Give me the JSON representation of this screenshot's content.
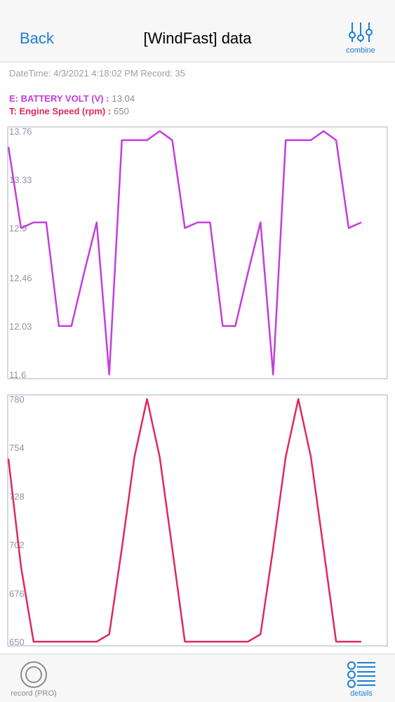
{
  "navbar": {
    "back_label": "Back",
    "title": "[WindFast] data",
    "combine_label": "combine",
    "combine_icon": "sliders-icon"
  },
  "info": {
    "datetime": "DateTime: 4/3/2021 4:18:02 PM Record: 35"
  },
  "legend": {
    "e_label": "E: BATTERY VOLT (V) :",
    "e_value": "13.04",
    "e_color": "#c43dde",
    "t_label": "T: Engine Speed (rpm) :",
    "t_value": "650",
    "t_color": "#e0285e"
  },
  "chart_data": [
    {
      "type": "line",
      "series": [
        {
          "color": "#c43dde",
          "values": [
            13.62,
            12.9,
            12.95,
            12.95,
            12.03,
            12.03,
            12.5,
            12.95,
            11.6,
            13.68,
            13.68,
            13.68,
            13.76,
            13.68,
            12.9,
            12.95,
            12.95,
            12.03,
            12.03,
            12.5,
            12.95,
            11.6,
            13.68,
            13.68,
            13.68,
            13.76,
            13.68,
            12.9,
            12.95
          ]
        }
      ],
      "ylim": [
        11.6,
        13.76
      ],
      "yticks": [
        "13.76",
        "13.33",
        "12.9",
        "12.46",
        "12.03",
        "11.6"
      ],
      "grid": false
    },
    {
      "type": "line",
      "series": [
        {
          "color": "#e0285e",
          "values": [
            748,
            690,
            650,
            650,
            650,
            650,
            650,
            650,
            654,
            700,
            749,
            780,
            749,
            700,
            650,
            650,
            650,
            650,
            650,
            650,
            654,
            700,
            749,
            780,
            749,
            700,
            650,
            650,
            650
          ]
        }
      ],
      "ylim": [
        650,
        780
      ],
      "yticks": [
        "780",
        "754",
        "728",
        "702",
        "676",
        "650"
      ],
      "grid": false
    }
  ],
  "tabbar": {
    "record_label": "record (PRO)",
    "record_icon": "record-circle-icon",
    "details_label": "details",
    "details_icon": "list-icon"
  }
}
